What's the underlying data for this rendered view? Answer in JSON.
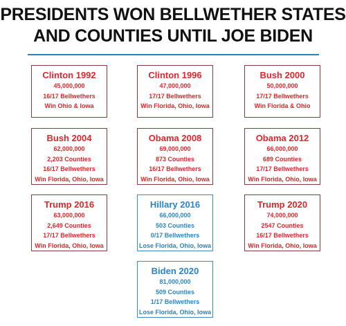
{
  "title": {
    "line1": "PRESIDENTS WON BELLWETHER STATES",
    "line2": "AND COUNTIES UNTIL JOE BIDEN"
  },
  "colors": {
    "winner_red": "#e0262b",
    "loser_blue": "#2a85c4",
    "rule": "#2b7fb8"
  },
  "cards": [
    {
      "name": "Clinton 1992",
      "lines": [
        "45,000,000",
        "16/17 Bellwethers",
        "Win Ohio & Iowa"
      ]
    },
    {
      "name": "Clinton 1996",
      "lines": [
        "47,000,000",
        "17/17 Bellwethers",
        "Win Florida, Ohio, Iowa"
      ]
    },
    {
      "name": "Bush 2000",
      "lines": [
        "50,000,000",
        "17/17 Bellwethers",
        "Win Florida & Ohio"
      ]
    },
    {
      "name": "Bush 2004",
      "lines": [
        "62,000,000",
        "2,203 Counties",
        "16/17 Bellwethers",
        "Win Florida, Ohio, Iowa"
      ]
    },
    {
      "name": "Obama 2008",
      "lines": [
        "69,000,000",
        "873 Counties",
        "16/17 Bellwethers",
        "Win Florida, Ohio, Iowa"
      ]
    },
    {
      "name": "Obama 2012",
      "lines": [
        "66,000,000",
        "689 Counties",
        "17/17 Bellwethers",
        "Win Florida, Ohio, Iowa"
      ]
    },
    {
      "name": "Trump 2016",
      "lines": [
        "63,000,000",
        "2,649 Counties",
        "17/17 Bellwethers",
        "Win Florida, Ohio, Iowa"
      ]
    },
    {
      "name": "Hillary 2016",
      "lines": [
        "66,000,000",
        "503 Counties",
        "0/17 Bellwethers",
        "Lose Florida, Ohio, Iowa"
      ]
    },
    {
      "name": "Trump 2020",
      "lines": [
        "74,000,000",
        "2547 Counties",
        "16/17 Bellwethers",
        "Win Florida, Ohio, Iowa"
      ]
    },
    {
      "name": "Biden 2020",
      "lines": [
        "81,000,000",
        "509 Counties",
        "1/17 Bellwethers",
        "Lose Florida, Ohio, Iowa"
      ]
    }
  ]
}
